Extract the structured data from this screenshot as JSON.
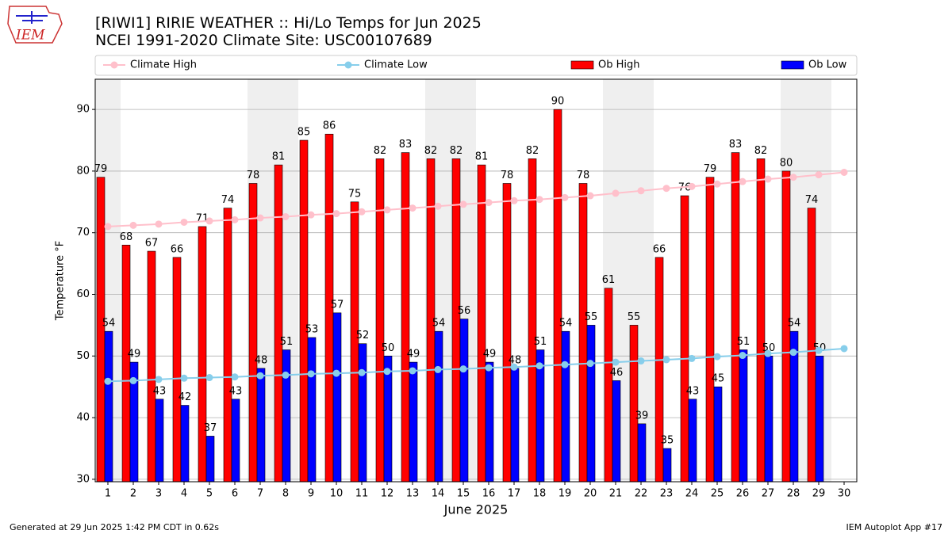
{
  "header": {
    "logo_text": "IEM"
  },
  "chart_data": {
    "type": "bar",
    "title": "[RIWI1] RIRIE WEATHER :: Hi/Lo Temps for Jun 2025",
    "subtitle": "NCEI 1991-2020 Climate Site: USC00107689",
    "xlabel": "June 2025",
    "ylabel": "Temperature °F",
    "x": [
      1,
      2,
      3,
      4,
      5,
      6,
      7,
      8,
      9,
      10,
      11,
      12,
      13,
      14,
      15,
      16,
      17,
      18,
      19,
      20,
      21,
      22,
      23,
      24,
      25,
      26,
      27,
      28,
      29,
      30
    ],
    "xlim": [
      0.5,
      30.5
    ],
    "xticks": [
      1,
      2,
      3,
      4,
      5,
      6,
      7,
      8,
      9,
      10,
      11,
      12,
      13,
      14,
      15,
      16,
      17,
      18,
      19,
      20,
      21,
      22,
      23,
      24,
      25,
      26,
      27,
      28,
      29,
      30
    ],
    "ylim": [
      29.6,
      94.9
    ],
    "yticks": [
      30,
      40,
      50,
      60,
      70,
      80,
      90
    ],
    "grid": true,
    "shaded_spans": [
      [
        0.5,
        1.5
      ],
      [
        6.5,
        8.5
      ],
      [
        13.5,
        15.5
      ],
      [
        20.5,
        22.5
      ],
      [
        27.5,
        29.5
      ]
    ],
    "series": [
      {
        "name": "Climate High",
        "type": "line",
        "color": "#ffc0cb",
        "values": [
          71.0,
          71.2,
          71.4,
          71.7,
          71.9,
          72.1,
          72.4,
          72.6,
          72.9,
          73.1,
          73.4,
          73.7,
          74.0,
          74.3,
          74.6,
          74.9,
          75.2,
          75.4,
          75.7,
          76.0,
          76.4,
          76.8,
          77.2,
          77.5,
          77.9,
          78.3,
          78.7,
          79.0,
          79.4,
          79.8
        ]
      },
      {
        "name": "Climate Low",
        "type": "line",
        "color": "#87ceeb",
        "values": [
          45.9,
          46.0,
          46.2,
          46.4,
          46.5,
          46.6,
          46.8,
          46.9,
          47.1,
          47.2,
          47.3,
          47.5,
          47.6,
          47.8,
          47.9,
          48.1,
          48.2,
          48.4,
          48.6,
          48.8,
          49.0,
          49.2,
          49.4,
          49.6,
          49.9,
          50.1,
          50.4,
          50.6,
          50.9,
          51.2
        ]
      },
      {
        "name": "Ob High",
        "type": "bar",
        "color": "#ff0000",
        "values": [
          79,
          68,
          67,
          66,
          71,
          74,
          78,
          81,
          85,
          86,
          75,
          82,
          83,
          82,
          82,
          81,
          78,
          82,
          90,
          78,
          61,
          55,
          66,
          76,
          79,
          83,
          82,
          80,
          74,
          null
        ]
      },
      {
        "name": "Ob Low",
        "type": "bar",
        "color": "#0000ff",
        "values": [
          54,
          49,
          43,
          42,
          37,
          43,
          48,
          51,
          53,
          57,
          52,
          50,
          49,
          54,
          56,
          49,
          48,
          51,
          54,
          55,
          46,
          39,
          35,
          43,
          45,
          51,
          50,
          54,
          50,
          null
        ]
      }
    ]
  },
  "footer": {
    "left": "Generated at 29 Jun 2025 1:42 PM CDT in 0.62s",
    "right": "IEM Autoplot App #17"
  }
}
